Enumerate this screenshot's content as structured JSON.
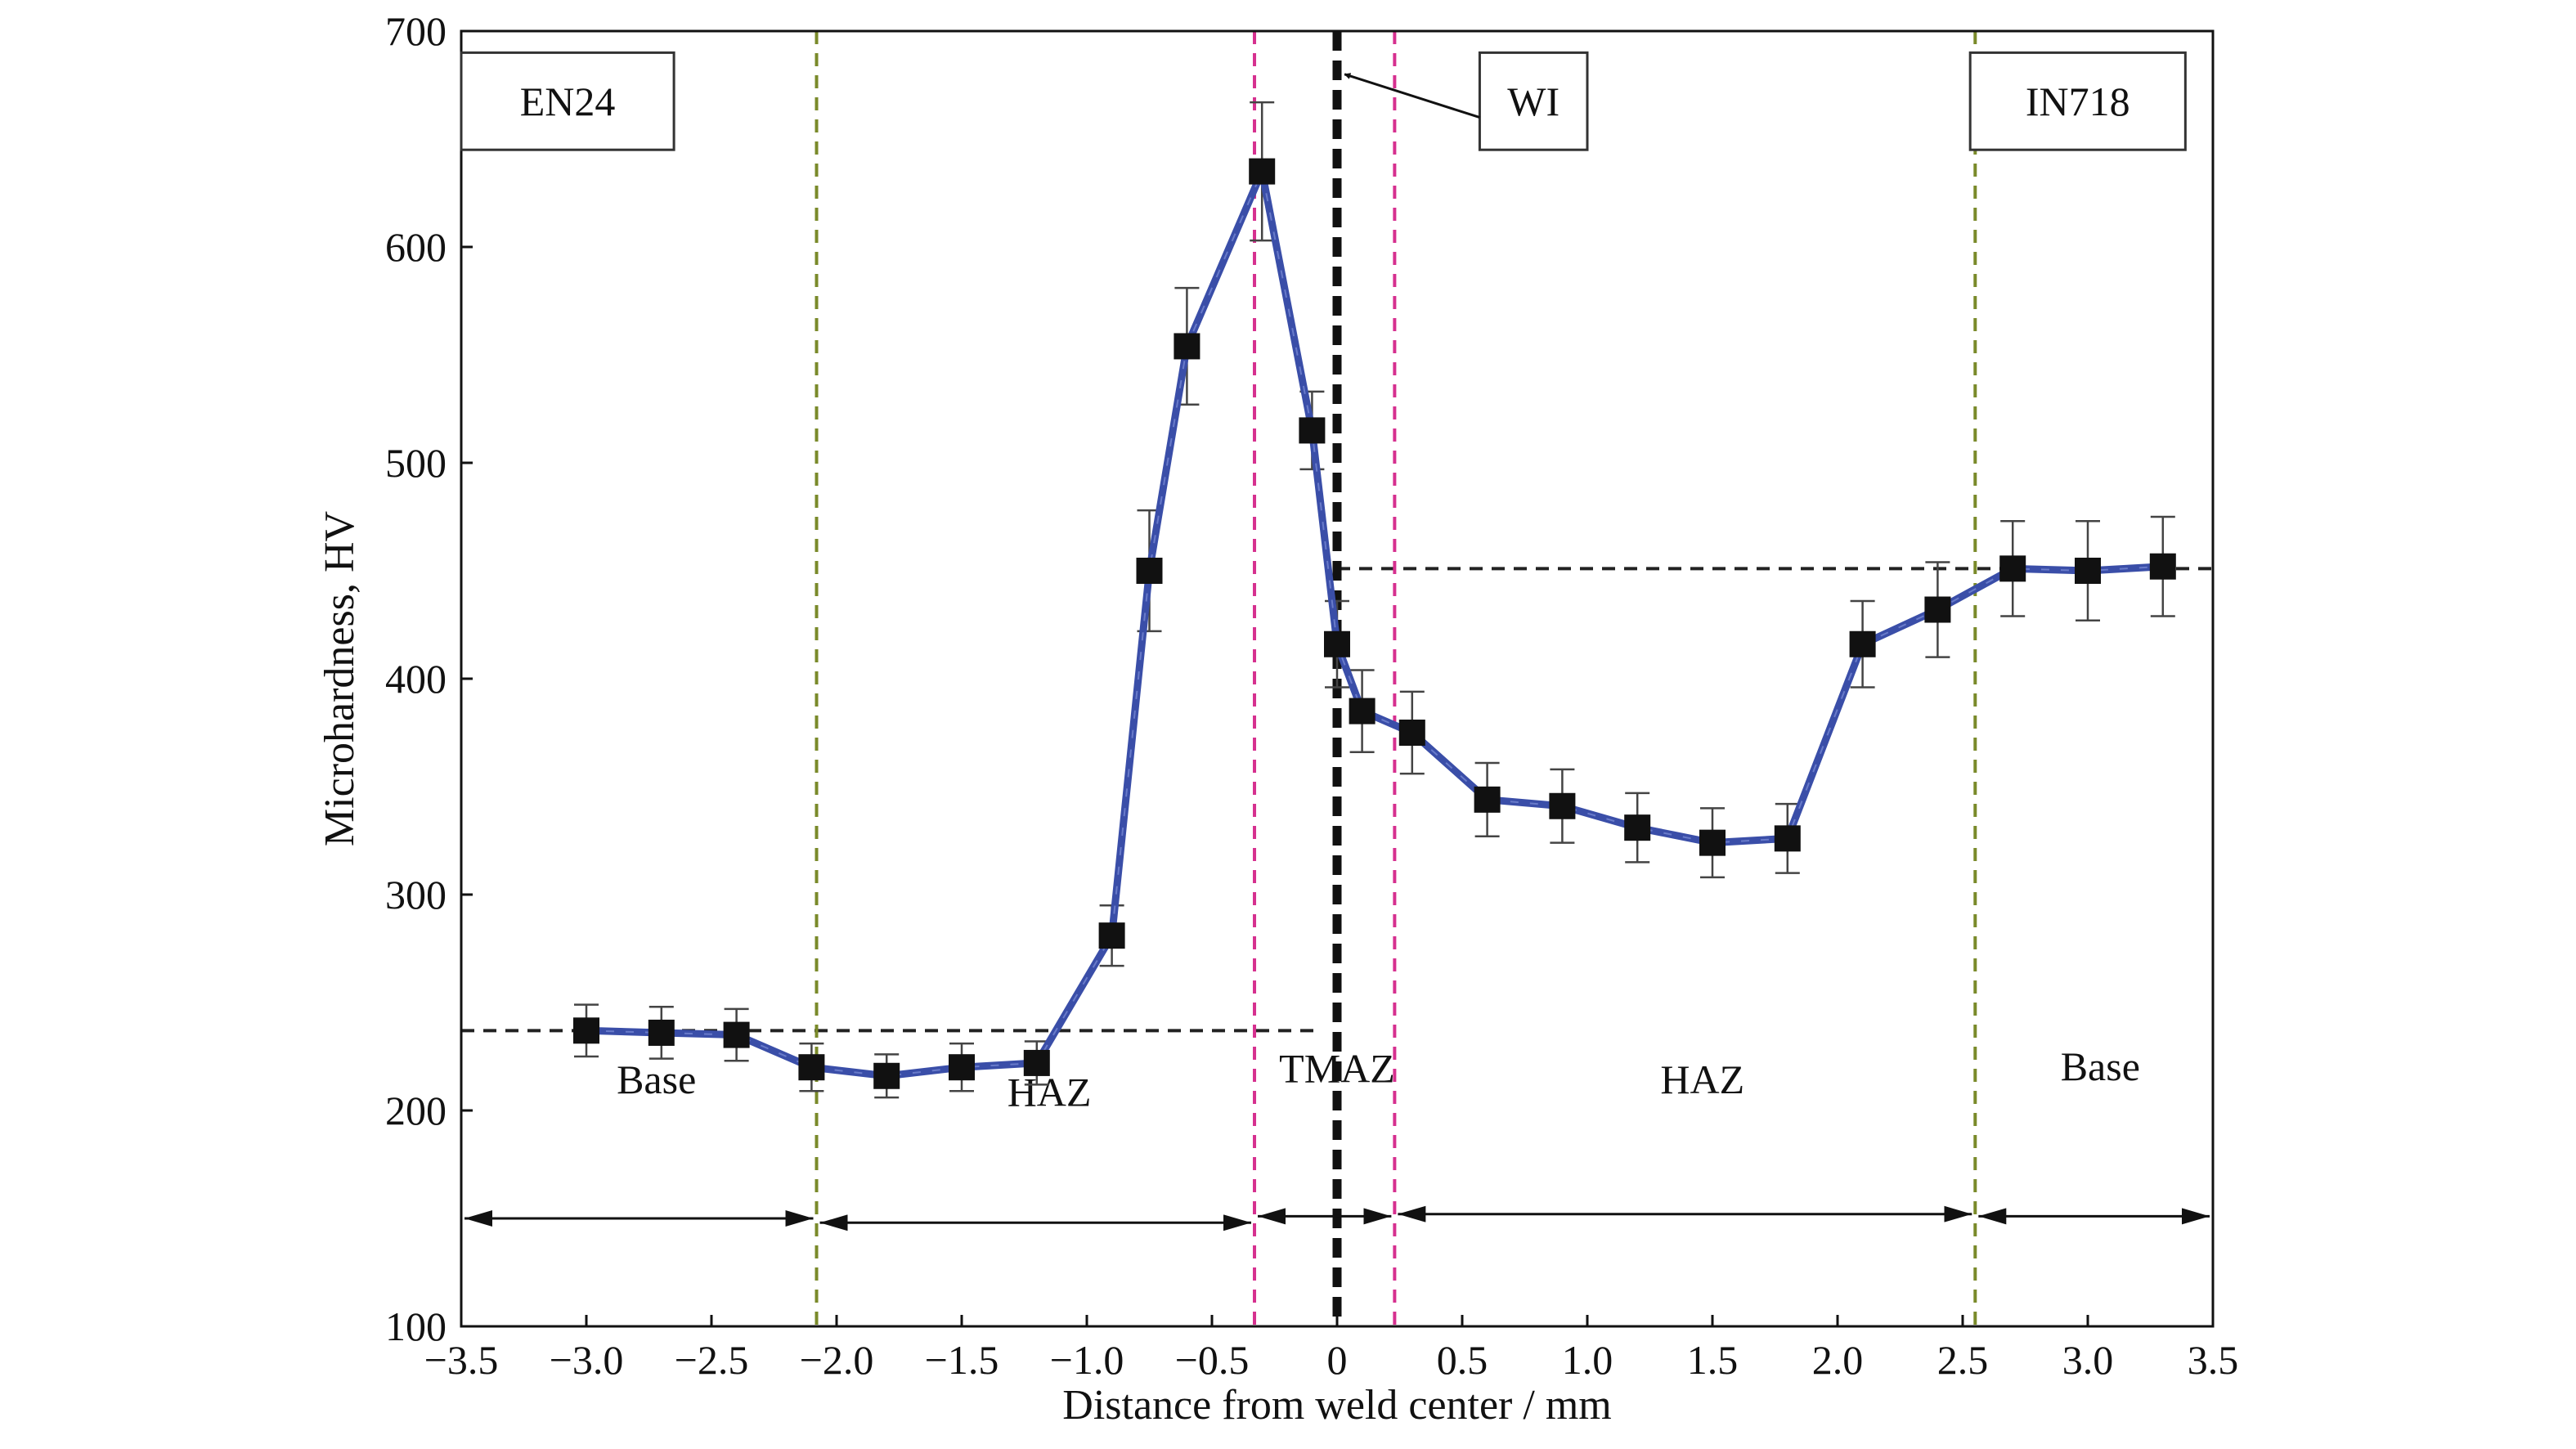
{
  "chart_data": {
    "type": "line",
    "xlabel": "Distance from weld center / mm",
    "ylabel": "Microhardness, HV",
    "xlim": [
      -3.5,
      3.5
    ],
    "ylim": [
      100,
      700
    ],
    "x_ticks": [
      -3.5,
      -3.0,
      -2.5,
      -2.0,
      -1.5,
      -1.0,
      -0.5,
      0,
      0.5,
      1.0,
      1.5,
      2.0,
      2.5,
      3.0,
      3.5
    ],
    "x_tick_labels": [
      "−3.5",
      "−3.0",
      "−2.5",
      "−2.0",
      "−1.5",
      "−1.0",
      "−0.5",
      "0",
      "0.5",
      "1.0",
      "1.5",
      "2.0",
      "2.5",
      "3.0",
      "3.5"
    ],
    "y_ticks": [
      100,
      200,
      300,
      400,
      500,
      600,
      700
    ],
    "y_tick_labels": [
      "100",
      "200",
      "300",
      "400",
      "500",
      "600",
      "700"
    ],
    "grid": false,
    "series": [
      {
        "color": "#3a4ea8",
        "marker_color": "#111111",
        "points": [
          {
            "x": -3.0,
            "y": 237,
            "err": 12
          },
          {
            "x": -2.7,
            "y": 236,
            "err": 12
          },
          {
            "x": -2.4,
            "y": 235,
            "err": 12
          },
          {
            "x": -2.1,
            "y": 220,
            "err": 11
          },
          {
            "x": -1.8,
            "y": 216,
            "err": 10
          },
          {
            "x": -1.5,
            "y": 220,
            "err": 11
          },
          {
            "x": -1.2,
            "y": 222,
            "err": 10
          },
          {
            "x": -0.9,
            "y": 281,
            "err": 14
          },
          {
            "x": -0.75,
            "y": 450,
            "err": 28
          },
          {
            "x": -0.6,
            "y": 554,
            "err": 27
          },
          {
            "x": -0.3,
            "y": 635,
            "err": 32
          },
          {
            "x": -0.1,
            "y": 515,
            "err": 18
          },
          {
            "x": 0.0,
            "y": 416,
            "err": 20
          },
          {
            "x": 0.1,
            "y": 385,
            "err": 19
          },
          {
            "x": 0.3,
            "y": 375,
            "err": 19
          },
          {
            "x": 0.6,
            "y": 344,
            "err": 17
          },
          {
            "x": 0.9,
            "y": 341,
            "err": 17
          },
          {
            "x": 1.2,
            "y": 331,
            "err": 16
          },
          {
            "x": 1.5,
            "y": 324,
            "err": 16
          },
          {
            "x": 1.8,
            "y": 326,
            "err": 16
          },
          {
            "x": 2.1,
            "y": 416,
            "err": 20
          },
          {
            "x": 2.4,
            "y": 432,
            "err": 22
          },
          {
            "x": 2.7,
            "y": 451,
            "err": 22
          },
          {
            "x": 3.0,
            "y": 450,
            "err": 23
          },
          {
            "x": 3.3,
            "y": 452,
            "err": 23
          }
        ]
      }
    ],
    "reference_lines": {
      "vertical": [
        {
          "x": -2.08,
          "color": "#7a8a2a"
        },
        {
          "x": -0.33,
          "color": "#d6308f"
        },
        {
          "x": 0.0,
          "color": "#111111",
          "style": "weld-interface"
        },
        {
          "x": 0.23,
          "color": "#d6308f"
        },
        {
          "x": 2.55,
          "color": "#7a8a2a"
        }
      ],
      "horizontal": [
        {
          "y": 237,
          "x_from": -3.5,
          "x_to": -0.08,
          "color": "#222222"
        },
        {
          "y": 451,
          "x_from": 0.0,
          "x_to": 3.5,
          "color": "#222222"
        }
      ]
    },
    "annotations": {
      "material_boxes": [
        {
          "text": "EN24",
          "x_from": -3.5,
          "x_to": -2.65,
          "y_top": 690,
          "y_bottom": 645
        },
        {
          "text": "WI",
          "x_from": 0.57,
          "x_to": 1.0,
          "y_top": 690,
          "y_bottom": 645
        },
        {
          "text": "IN718",
          "x_from": 2.53,
          "x_to": 3.39,
          "y_top": 690,
          "y_bottom": 645
        }
      ],
      "wi_arrow": {
        "from": {
          "x": 0.57,
          "y": 660
        },
        "to": {
          "x": 0.03,
          "y": 680
        }
      },
      "zones": [
        {
          "text": "Base",
          "label_x": -2.72,
          "label_y": 208,
          "x_from": -3.5,
          "x_to": -2.08,
          "arrow_y": 150
        },
        {
          "text": "HAZ",
          "label_x": -1.15,
          "label_y": 202,
          "x_from": -2.08,
          "x_to": -0.33,
          "arrow_y": 148
        },
        {
          "text": "TMAZ",
          "label_x": 0.0,
          "label_y": 213,
          "x_from": -0.33,
          "x_to": 0.23,
          "arrow_y": 151
        },
        {
          "text": "HAZ",
          "label_x": 1.46,
          "label_y": 208,
          "x_from": 0.23,
          "x_to": 2.55,
          "arrow_y": 152
        },
        {
          "text": "Base",
          "label_x": 3.05,
          "label_y": 214,
          "x_from": 2.55,
          "x_to": 3.5,
          "arrow_y": 151
        }
      ]
    }
  }
}
